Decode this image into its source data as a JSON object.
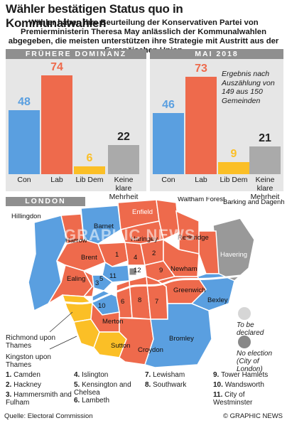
{
  "title": "Wähler bestätigen Status quo in Kommunalwahlen",
  "subtitle": "Wähler haben ihre Beurteilung der Konservativen Partei von Premierministerin Theresa May anlässlich der Kommunalwahlen abgegeben, die meisten unterstützen ihre Strategie mit Austritt aus der Europäischen Union",
  "colors": {
    "con": "#5a9fe0",
    "lab": "#ee6a4c",
    "lib": "#fbbf26",
    "none": "#aaaaaa",
    "panel": "#e6e6e6",
    "undeclared": "#d6d6d6",
    "nolection": "#888888"
  },
  "chart_data": [
    {
      "type": "bar",
      "title": "FRÜHERE DOMINANZ",
      "categories": [
        "Con",
        "Lab",
        "Lib Dem",
        "Keine klare Mehrheit"
      ],
      "values": [
        48,
        74,
        6,
        22
      ]
    },
    {
      "type": "bar",
      "title": "MAI 2018",
      "categories": [
        "Con",
        "Lab",
        "Lib Dem",
        "Keine klare Mehrheit"
      ],
      "values": [
        46,
        73,
        9,
        21
      ],
      "annotation": "Ergebnis nach Auszählung von 149 aus 150 Gemeinden"
    }
  ],
  "map": {
    "heading": "LONDON",
    "watermark": "GRAPHIC NEWS",
    "labels": {
      "hillingdon": "Hillingdon",
      "barnet": "Barnet",
      "enfield": "Enfield",
      "waltham": "Waltham Forest",
      "barking": "Barking and Dagenham",
      "harrow": "Harrow",
      "haringey": "Haringey",
      "redbridge": "Redbridge",
      "brent": "Brent",
      "havering": "Havering",
      "ealing": "Ealing",
      "newham": "Newham",
      "greenwich": "Greenwich",
      "bexley": "Bexley",
      "merton": "Merton",
      "richmond": "Richmond upon Thames",
      "kingston": "Kingston upon Thames",
      "sutton": "Sutton",
      "croydon": "Croydon",
      "bromley": "Bromley",
      "n1": "1",
      "n2": "2",
      "n3": "3",
      "n4": "4",
      "n5": "5",
      "n6": "6",
      "n7": "7",
      "n8": "8",
      "n9": "9",
      "n10": "10",
      "n11": "11",
      "n12": "12"
    },
    "legend": [
      {
        "label": "To be declared"
      },
      {
        "label": "No election (City of London)"
      }
    ],
    "key": [
      {
        "num": "1.",
        "name": "Camden"
      },
      {
        "num": "2.",
        "name": "Hackney"
      },
      {
        "num": "3.",
        "name": "Hammersmith and Fulham"
      },
      {
        "num": "4.",
        "name": "Islington"
      },
      {
        "num": "5.",
        "name": "Kensington and Chelsea"
      },
      {
        "num": "6.",
        "name": "Lambeth"
      },
      {
        "num": "7.",
        "name": "Lewisham"
      },
      {
        "num": "8.",
        "name": "Southwark"
      },
      {
        "num": "9.",
        "name": "Tower Hamlets"
      },
      {
        "num": "10.",
        "name": "Wandsworth"
      },
      {
        "num": "11.",
        "name": "City of Westminster"
      }
    ]
  },
  "footer": {
    "source": "Quelle: Electoral Commission",
    "credit": "© GRAPHIC NEWS"
  }
}
